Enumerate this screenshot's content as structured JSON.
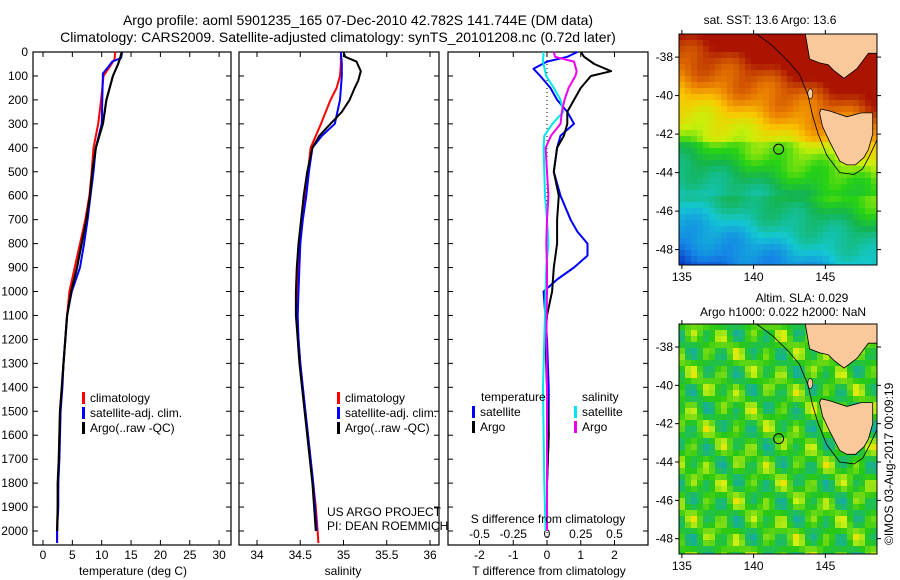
{
  "title": {
    "line1": "Argo profile: aoml 5901235_165 07-Dec-2010 42.782S 141.744E (DM data)",
    "line2": "Climatology: CARS2009. Satellite-adjusted climatology: synTS_20101208.nc (0.72d later)"
  },
  "colors": {
    "climatology": "#ff0000",
    "satellite": "#0000ff",
    "argo": "#000000",
    "sal_satellite": "#00e5ee",
    "sal_argo": "#ee00ee",
    "land": "#f9c89b"
  },
  "chart_data": [
    {
      "type": "line",
      "name": "temperature-profile",
      "xlabel": "temperature (deg C)",
      "ylabel": "",
      "xlim": [
        -1.7,
        32
      ],
      "ylim": [
        2070,
        0
      ],
      "xticks": [
        0,
        5,
        10,
        15,
        20,
        25,
        30
      ],
      "yticks": [
        0,
        100,
        200,
        300,
        400,
        500,
        600,
        700,
        800,
        900,
        1000,
        1100,
        1200,
        1300,
        1400,
        1500,
        1600,
        1700,
        1800,
        1900,
        2000
      ],
      "legend": [
        "climatology",
        "satellite-adj. clim.",
        "Argo(..raw -QC)"
      ],
      "legend_position": "lower-center",
      "series": [
        {
          "name": "climatology",
          "depth": [
            0,
            30,
            60,
            100,
            200,
            300,
            400,
            500,
            600,
            700,
            800,
            900,
            1000,
            1100,
            1200,
            1300,
            1400,
            1500,
            1600,
            1700,
            1800,
            1900,
            2000,
            2050
          ],
          "values": [
            12.3,
            12.2,
            11.4,
            10.3,
            9.9,
            9.4,
            8.6,
            8.3,
            7.9,
            7.2,
            6.3,
            5.4,
            4.5,
            4.1,
            3.8,
            3.5,
            3.2,
            2.9,
            2.8,
            2.7,
            2.6,
            2.5,
            2.4,
            2.4
          ]
        },
        {
          "name": "satellite-adj. clim.",
          "depth": [
            0,
            25,
            40,
            90,
            200,
            300,
            400,
            500,
            600,
            700,
            800,
            900,
            1000,
            1100,
            1200,
            1300,
            1400,
            1500,
            1600,
            1700,
            1800,
            1900,
            2000,
            2050
          ],
          "values": [
            13.5,
            13.3,
            11.8,
            10.2,
            10.1,
            10.0,
            9.0,
            8.6,
            8.1,
            7.6,
            7.0,
            6.3,
            4.9,
            4.1,
            3.8,
            3.5,
            3.3,
            3.0,
            2.9,
            2.8,
            2.6,
            2.6,
            2.4,
            2.4
          ]
        },
        {
          "name": "Argo(..raw -QC)",
          "depth": [
            0,
            20,
            50,
            100,
            200,
            300,
            400,
            500,
            600,
            700,
            800,
            900,
            1000,
            1100,
            1200,
            1300,
            1400,
            1500,
            1600,
            1700,
            1800,
            1900,
            2000
          ],
          "values": [
            13.4,
            13.2,
            12.8,
            11.9,
            10.8,
            10.2,
            9.0,
            8.4,
            8.0,
            7.4,
            6.6,
            5.8,
            4.8,
            4.1,
            3.8,
            3.5,
            3.2,
            2.9,
            2.8,
            2.7,
            2.5,
            2.5,
            2.4
          ]
        }
      ]
    },
    {
      "type": "line",
      "name": "salinity-profile",
      "xlabel": "salinity",
      "xlim": [
        33.8,
        36.1
      ],
      "ylim": [
        2070,
        0
      ],
      "xticks": [
        34,
        34.5,
        35,
        35.5,
        36
      ],
      "legend": [
        "climatology",
        "satellite-adj. clim.",
        "Argo(..raw -QC)"
      ],
      "legend_position": "lower-center",
      "annotation": [
        "US ARGO PROJECT",
        "PI: DEAN ROEMMICH"
      ],
      "series": [
        {
          "name": "climatology",
          "depth": [
            0,
            50,
            100,
            150,
            200,
            300,
            350,
            400,
            500,
            600,
            700,
            800,
            900,
            1000,
            1100,
            1200,
            1300,
            1400,
            1500,
            1600,
            1700,
            1800,
            1900,
            2000,
            2050
          ],
          "values": [
            34.97,
            34.97,
            34.96,
            34.92,
            34.85,
            34.74,
            34.68,
            34.62,
            34.59,
            34.55,
            34.52,
            34.49,
            34.47,
            34.46,
            34.46,
            34.48,
            34.5,
            34.53,
            34.56,
            34.59,
            34.62,
            34.65,
            34.68,
            34.7,
            34.71
          ]
        },
        {
          "name": "satellite-adj. clim.",
          "depth": [
            0,
            50,
            100,
            150,
            200,
            300,
            350,
            400,
            500,
            600,
            700,
            800,
            900,
            1000,
            1100,
            1200,
            1300,
            1400,
            1500,
            1600,
            1700,
            1800,
            1900,
            2000
          ],
          "values": [
            34.97,
            34.98,
            34.98,
            34.97,
            34.96,
            34.9,
            34.75,
            34.64,
            34.6,
            34.57,
            34.53,
            34.5,
            34.49,
            34.48,
            34.47,
            34.48,
            34.5,
            34.53,
            34.56,
            34.59,
            34.62,
            34.65,
            34.67,
            34.69
          ]
        },
        {
          "name": "Argo(..raw -QC)",
          "depth": [
            0,
            20,
            40,
            80,
            120,
            150,
            200,
            250,
            300,
            350,
            400,
            500,
            600,
            700,
            800,
            900,
            1000,
            1100,
            1200,
            1300,
            1400,
            1500,
            1600,
            1700,
            1800,
            1900,
            2000
          ],
          "values": [
            35.0,
            35.02,
            35.15,
            35.2,
            35.17,
            35.13,
            35.07,
            34.98,
            34.85,
            34.72,
            34.64,
            34.58,
            34.54,
            34.51,
            34.48,
            34.46,
            34.45,
            34.45,
            34.47,
            34.49,
            34.52,
            34.55,
            34.58,
            34.61,
            34.64,
            34.66,
            34.68
          ]
        }
      ]
    },
    {
      "type": "line",
      "name": "difference-profile",
      "xlabel": "T difference from climatology",
      "xlabel2": "S difference from climatology",
      "xlim": [
        -2.9,
        2.9
      ],
      "xlim_s": [
        -0.725,
        0.725
      ],
      "ylim": [
        2070,
        0
      ],
      "xticks": [
        -2,
        -1,
        0,
        1,
        2
      ],
      "xticks_s": [
        "-0.5",
        "-0.25",
        "0",
        "0.25",
        "0.5"
      ],
      "legend_headers": [
        "temperature",
        "salinity"
      ],
      "legend": [
        "satellite",
        "Argo",
        "satellite",
        "Argo"
      ],
      "legend_position": "lower-center",
      "series": [
        {
          "name": "temperature satellite",
          "depth": [
            0,
            20,
            40,
            70,
            100,
            150,
            200,
            250,
            300,
            350,
            400,
            500,
            600,
            700,
            750,
            800,
            850,
            900,
            950,
            1000,
            1100,
            1200,
            1400,
            1600,
            1800,
            2000
          ],
          "values": [
            0.9,
            0.6,
            0.0,
            -0.4,
            -0.2,
            0.1,
            0.3,
            0.6,
            0.8,
            0.4,
            0.3,
            0.2,
            0.4,
            0.7,
            0.9,
            1.2,
            1.2,
            0.8,
            0.3,
            -0.1,
            -0.05,
            0.0,
            0.05,
            0.05,
            0.0,
            0.0
          ]
        },
        {
          "name": "temperature Argo",
          "depth": [
            0,
            20,
            50,
            80,
            100,
            150,
            200,
            250,
            300,
            350,
            400,
            500,
            600,
            700,
            800,
            900,
            1000,
            1100,
            1200,
            1400,
            1600,
            1800,
            2000
          ],
          "values": [
            1.0,
            1.1,
            1.4,
            1.9,
            1.3,
            1.0,
            0.8,
            0.6,
            0.6,
            0.5,
            0.3,
            0.2,
            0.35,
            0.3,
            0.3,
            0.2,
            0.15,
            0.0,
            -0.05,
            0.0,
            0.05,
            0.0,
            0.0
          ]
        },
        {
          "name": "salinity satellite",
          "depth": [
            0,
            40,
            100,
            150,
            200,
            250,
            300,
            350,
            400,
            500,
            600,
            700,
            800,
            900,
            1000,
            1200,
            1400,
            1600,
            1800,
            2000
          ],
          "values": [
            -0.025,
            -0.03,
            -0.005,
            0.05,
            0.1,
            0.12,
            0.04,
            -0.02,
            -0.025,
            -0.02,
            -0.015,
            0.0,
            0.01,
            -0.005,
            -0.01,
            -0.02,
            -0.03,
            -0.025,
            -0.02,
            -0.01
          ]
        },
        {
          "name": "salinity Argo",
          "depth": [
            0,
            20,
            40,
            80,
            100,
            150,
            200,
            250,
            300,
            350,
            400,
            500,
            600,
            700,
            800,
            900,
            1000,
            1200,
            1400,
            1600,
            1800,
            2000
          ],
          "values": [
            0.05,
            0.06,
            0.2,
            0.22,
            0.21,
            0.16,
            0.13,
            0.11,
            0.1,
            0.03,
            -0.01,
            0.0,
            0.01,
            0.0,
            -0.005,
            0.0,
            0.0,
            -0.005,
            0.0,
            0.0,
            0.0,
            0.0
          ]
        }
      ]
    },
    {
      "type": "heatmap",
      "name": "sst-map",
      "title": "sat. SST: 13.6  Argo: 13.6",
      "xticks": [
        135,
        140,
        145
      ],
      "yticks": [
        -38,
        -40,
        -42,
        -44,
        -46,
        -48
      ],
      "xlim": [
        134.8,
        148.6
      ],
      "ylim": [
        -48.8,
        -36.8
      ],
      "marker": {
        "lon": 141.744,
        "lat": -42.782
      }
    },
    {
      "type": "heatmap",
      "name": "sla-map",
      "title": "Altim. SLA: 0.029",
      "subtitle": "Argo h1000: 0.022 h2000: NaN",
      "xticks": [
        135,
        140,
        145
      ],
      "yticks": [
        -38,
        -40,
        -42,
        -44,
        -46,
        -48
      ],
      "xlim": [
        134.8,
        148.6
      ],
      "ylim": [
        -48.8,
        -36.8
      ],
      "marker": {
        "lon": 141.744,
        "lat": -42.782
      }
    }
  ],
  "credit": "©IMOS 03-Aug-2017 00:09:19"
}
